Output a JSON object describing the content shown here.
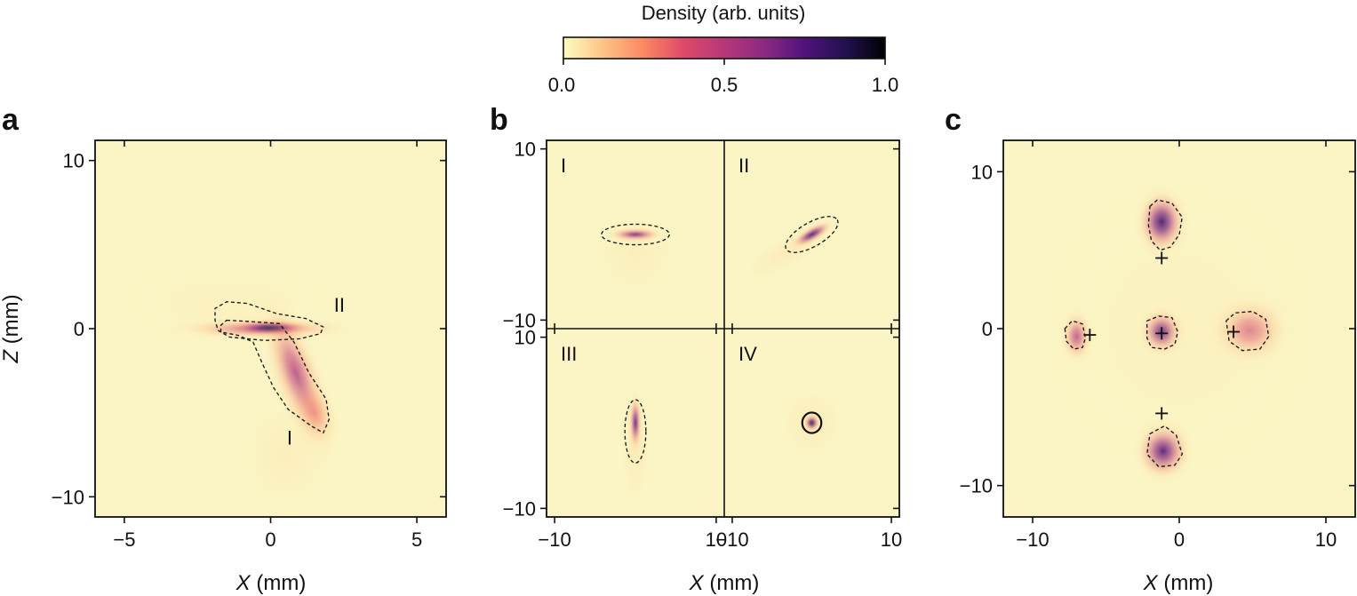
{
  "colorbar": {
    "label": "Density (arb. units)",
    "ticks": [
      "0.0",
      "0.5",
      "1.0"
    ],
    "range": [
      0,
      1
    ],
    "colormap": "magma_r",
    "colors": [
      "#fcfdbf",
      "#fec287",
      "#fb8861",
      "#de4968",
      "#b73779",
      "#8c2981",
      "#51127c",
      "#221150",
      "#000004"
    ]
  },
  "chart_data": [
    {
      "panel": "a",
      "type": "heatmap",
      "title": "",
      "xlabel_italic": "X",
      "xlabel_unit": "(mm)",
      "ylabel_italic": "Z",
      "ylabel_unit": "(mm)",
      "xlim": [
        -6,
        6
      ],
      "ylim": [
        -11.2,
        11.2
      ],
      "xticks": [
        -5,
        0,
        5
      ],
      "yticks": [
        -10,
        0,
        10
      ],
      "xticklabels": [
        "−5",
        "0",
        "5"
      ],
      "yticklabels": [
        "−10",
        "0",
        "10"
      ],
      "background": "#fbf5c6",
      "blobs": [
        {
          "x": -0.3,
          "z": 0.0,
          "sx": 1.6,
          "sz": 0.35,
          "rot": 0,
          "amp": 0.55
        },
        {
          "x": 0.0,
          "z": 0.05,
          "sx": 0.7,
          "sz": 0.25,
          "rot": 0,
          "amp": 0.95
        },
        {
          "x": 0.9,
          "z": -2.8,
          "sx": 0.45,
          "sz": 2.6,
          "rot": -20,
          "amp": 0.55
        },
        {
          "x": 1.5,
          "z": -5.0,
          "sx": 0.4,
          "sz": 1.2,
          "rot": -20,
          "amp": 0.35
        },
        {
          "x": 0.5,
          "z": -7.5,
          "sx": 1.2,
          "sz": 2.5,
          "rot": 0,
          "amp": 0.08
        },
        {
          "x": -1.5,
          "z": 1.5,
          "sx": 2.5,
          "sz": 1.8,
          "rot": 0,
          "amp": 0.06
        }
      ],
      "contours": [
        {
          "points": [
            [
              -1.5,
              0.5
            ],
            [
              -0.5,
              0.4
            ],
            [
              0.3,
              0.3
            ],
            [
              0.8,
              -0.8
            ],
            [
              1.3,
              -2.6
            ],
            [
              1.9,
              -4.2
            ],
            [
              2.0,
              -5.4
            ],
            [
              1.8,
              -6.2
            ],
            [
              1.4,
              -5.8
            ],
            [
              0.6,
              -4.8
            ],
            [
              0.1,
              -3.5
            ],
            [
              -0.3,
              -2.0
            ],
            [
              -0.6,
              -0.8
            ],
            [
              -1.1,
              -0.4
            ],
            [
              -1.7,
              -0.2
            ],
            [
              -1.7,
              0.2
            ]
          ]
        },
        {
          "points": [
            [
              -1.8,
              -0.1
            ],
            [
              -1.4,
              -0.5
            ],
            [
              -0.2,
              -0.7
            ],
            [
              1.0,
              -0.6
            ],
            [
              1.7,
              -0.3
            ],
            [
              1.8,
              0.1
            ],
            [
              1.2,
              0.6
            ],
            [
              0.2,
              0.9
            ],
            [
              -0.8,
              1.5
            ],
            [
              -1.5,
              1.6
            ],
            [
              -1.9,
              1.2
            ],
            [
              -1.9,
              0.5
            ]
          ]
        }
      ],
      "labels": [
        {
          "text": "II",
          "x": 2.35,
          "z": 1.0
        },
        {
          "text": "I",
          "x": 0.65,
          "z": -6.9
        }
      ]
    },
    {
      "panel": "b",
      "type": "heatmap",
      "title": "",
      "xlabel_italic": "X",
      "xlabel_unit": "(mm)",
      "xlim": [
        -11,
        11
      ],
      "ylim": [
        -11,
        11
      ],
      "xticks": [
        -10,
        10
      ],
      "yticks": [
        -10,
        10
      ],
      "xticklabels": [
        "−10",
        "10"
      ],
      "yticklabels": [
        "−10",
        "10"
      ],
      "background": "#fbf5c6",
      "subpanels": [
        {
          "label": "I",
          "blobs": [
            {
              "x": 0,
              "z": 0,
              "sx": 1.8,
              "sz": 0.45,
              "rot": 0,
              "amp": 0.7
            },
            {
              "x": 0,
              "z": -2,
              "sx": 4,
              "sz": 4,
              "rot": 0,
              "amp": 0.08
            }
          ],
          "ellipse": {
            "cx": 0,
            "cz": 0,
            "rx": 4.2,
            "rz": 1.2,
            "rot": 0
          }
        },
        {
          "label": "II",
          "blobs": [
            {
              "x": 0,
              "z": 0,
              "sx": 1.6,
              "sz": 0.5,
              "rot": -30,
              "amp": 0.8
            },
            {
              "x": -3,
              "z": -2,
              "sx": 5,
              "sz": 1.5,
              "rot": -30,
              "amp": 0.1
            }
          ],
          "ellipse": {
            "cx": 0,
            "cz": 0,
            "rx": 3.7,
            "rz": 1.4,
            "rot": -30
          }
        },
        {
          "label": "III",
          "blobs": [
            {
              "x": 0,
              "z": 0,
              "sx": 0.45,
              "sz": 1.8,
              "rot": 0,
              "amp": 0.75
            },
            {
              "x": 0,
              "z": -3,
              "sx": 1.5,
              "sz": 5,
              "rot": 0,
              "amp": 0.1
            }
          ],
          "ellipse": {
            "cx": 0,
            "cz": -1,
            "rx": 1.3,
            "rz": 3.7,
            "rot": 0
          }
        },
        {
          "label": "IV",
          "blobs": [
            {
              "x": 0,
              "z": 0,
              "sx": 0.55,
              "sz": 0.55,
              "rot": 0,
              "amp": 0.95
            },
            {
              "x": 0,
              "z": 0,
              "sx": 3,
              "sz": 3,
              "rot": 0,
              "amp": 0.1
            }
          ],
          "ellipse": {
            "cx": 0,
            "cz": 0,
            "rx": 1.2,
            "rz": 1.2,
            "rot": 0,
            "solid": true
          }
        }
      ]
    },
    {
      "panel": "c",
      "type": "heatmap",
      "title": "",
      "xlabel_italic": "X",
      "xlabel_unit": "(mm)",
      "xlim": [
        -12,
        12
      ],
      "ylim": [
        -12,
        12
      ],
      "xticks": [
        -10,
        0,
        10
      ],
      "yticks": [
        -10,
        0,
        10
      ],
      "xticklabels": [
        "−10",
        "0",
        "10"
      ],
      "yticklabels": [
        "−10",
        "0",
        "10"
      ],
      "background": "#fbf5c6",
      "blobs": [
        {
          "x": -1.2,
          "z": 6.8,
          "sx": 0.9,
          "sz": 1.1,
          "rot": 0,
          "amp": 0.8
        },
        {
          "x": -1.2,
          "z": -0.2,
          "sx": 0.8,
          "sz": 0.8,
          "rot": 0,
          "amp": 0.75
        },
        {
          "x": -7.0,
          "z": -0.5,
          "sx": 0.6,
          "sz": 0.9,
          "rot": 0,
          "amp": 0.55
        },
        {
          "x": 4.8,
          "z": -0.1,
          "sx": 1.5,
          "sz": 1.2,
          "rot": 0,
          "amp": 0.45
        },
        {
          "x": -1.1,
          "z": -7.8,
          "sx": 1.0,
          "sz": 1.0,
          "rot": 0,
          "amp": 0.75
        },
        {
          "x": 0,
          "z": 0,
          "sx": 7,
          "sz": 7,
          "rot": 0,
          "amp": 0.05
        }
      ],
      "contours": [
        {
          "points": [
            [
              -2.0,
              7.8
            ],
            [
              -1.5,
              8.2
            ],
            [
              -0.5,
              8.0
            ],
            [
              0.2,
              7.1
            ],
            [
              0,
              6.0
            ],
            [
              -0.6,
              5.2
            ],
            [
              -1.3,
              5.0
            ],
            [
              -1.9,
              5.6
            ],
            [
              -2.1,
              6.6
            ]
          ]
        },
        {
          "points": [
            [
              -2.2,
              0.5
            ],
            [
              -1.4,
              0.8
            ],
            [
              -0.5,
              0.7
            ],
            [
              -0.1,
              -0.2
            ],
            [
              -0.3,
              -1.0
            ],
            [
              -1.0,
              -1.3
            ],
            [
              -1.9,
              -1.2
            ],
            [
              -2.2,
              -0.6
            ]
          ]
        },
        {
          "points": [
            [
              -7.8,
              0.0
            ],
            [
              -7.3,
              0.5
            ],
            [
              -6.6,
              0.3
            ],
            [
              -6.4,
              -0.6
            ],
            [
              -6.6,
              -1.2
            ],
            [
              -7.2,
              -1.3
            ],
            [
              -7.7,
              -0.8
            ]
          ]
        },
        {
          "points": [
            [
              3.2,
              0.5
            ],
            [
              3.8,
              1.0
            ],
            [
              5.0,
              1.1
            ],
            [
              5.9,
              0.6
            ],
            [
              6.1,
              -0.5
            ],
            [
              5.5,
              -1.3
            ],
            [
              4.3,
              -1.4
            ],
            [
              3.4,
              -0.8
            ]
          ]
        },
        {
          "points": [
            [
              -2.0,
              -6.7
            ],
            [
              -1.0,
              -6.2
            ],
            [
              -0.2,
              -6.8
            ],
            [
              0.2,
              -8.0
            ],
            [
              -0.3,
              -8.7
            ],
            [
              -1.4,
              -8.8
            ],
            [
              -2.2,
              -8.0
            ]
          ]
        }
      ],
      "markers": [
        {
          "x": -1.2,
          "z": 4.5
        },
        {
          "x": -1.2,
          "z": -0.3
        },
        {
          "x": -6.1,
          "z": -0.4
        },
        {
          "x": 3.7,
          "z": -0.2
        },
        {
          "x": -1.2,
          "z": -5.4
        }
      ]
    }
  ]
}
